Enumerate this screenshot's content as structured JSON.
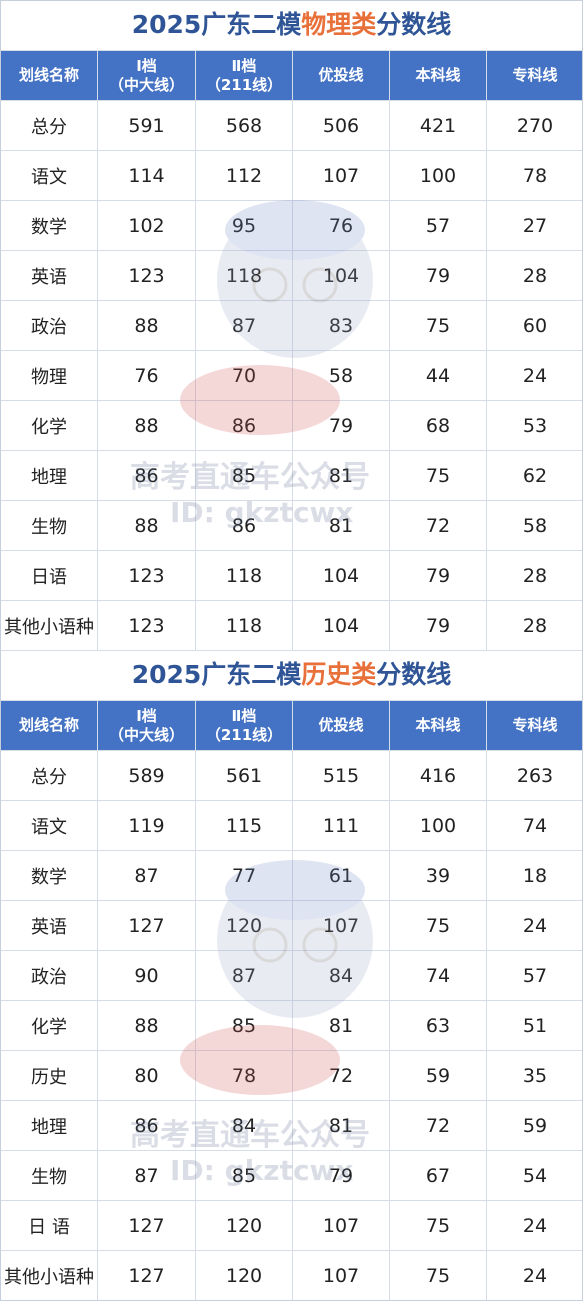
{
  "tables": [
    {
      "title_prefix": "2025广东二模",
      "title_highlight": "物理类",
      "title_suffix": "分数线",
      "headers": [
        "划线名称",
        "Ⅰ档",
        "（中大线）",
        "Ⅱ档",
        "（211线）",
        "优投线",
        "本科线",
        "专科线"
      ],
      "rows": [
        [
          "总分",
          "591",
          "568",
          "506",
          "421",
          "270"
        ],
        [
          "语文",
          "114",
          "112",
          "107",
          "100",
          "78"
        ],
        [
          "数学",
          "102",
          "95",
          "76",
          "57",
          "27"
        ],
        [
          "英语",
          "123",
          "118",
          "104",
          "79",
          "28"
        ],
        [
          "政治",
          "88",
          "87",
          "83",
          "75",
          "60"
        ],
        [
          "物理",
          "76",
          "70",
          "58",
          "44",
          "24"
        ],
        [
          "化学",
          "88",
          "86",
          "79",
          "68",
          "53"
        ],
        [
          "地理",
          "86",
          "85",
          "81",
          "75",
          "62"
        ],
        [
          "生物",
          "88",
          "86",
          "81",
          "72",
          "58"
        ],
        [
          "日语",
          "123",
          "118",
          "104",
          "79",
          "28"
        ],
        [
          "其他小语种",
          "123",
          "118",
          "104",
          "79",
          "28"
        ]
      ]
    },
    {
      "title_prefix": "2025广东二模",
      "title_highlight": "历史类",
      "title_suffix": "分数线",
      "headers": [
        "划线名称",
        "Ⅰ档",
        "（中大线）",
        "Ⅱ档",
        "（211线）",
        "优投线",
        "本科线",
        "专科线"
      ],
      "rows": [
        [
          "总分",
          "589",
          "561",
          "515",
          "416",
          "263"
        ],
        [
          "语文",
          "119",
          "115",
          "111",
          "100",
          "74"
        ],
        [
          "数学",
          "87",
          "77",
          "61",
          "39",
          "18"
        ],
        [
          "英语",
          "127",
          "120",
          "107",
          "75",
          "24"
        ],
        [
          "政治",
          "90",
          "87",
          "84",
          "74",
          "57"
        ],
        [
          "化学",
          "88",
          "85",
          "81",
          "63",
          "51"
        ],
        [
          "历史",
          "80",
          "78",
          "72",
          "59",
          "35"
        ],
        [
          "地理",
          "86",
          "84",
          "81",
          "72",
          "59"
        ],
        [
          "生物",
          "87",
          "85",
          "79",
          "67",
          "54"
        ],
        [
          "日 语",
          "127",
          "120",
          "107",
          "75",
          "24"
        ],
        [
          "其他小语种",
          "127",
          "120",
          "107",
          "75",
          "24"
        ]
      ]
    }
  ],
  "watermark": {
    "line1": "高考直通车公众号",
    "line2": "ID: gkztcwx"
  }
}
